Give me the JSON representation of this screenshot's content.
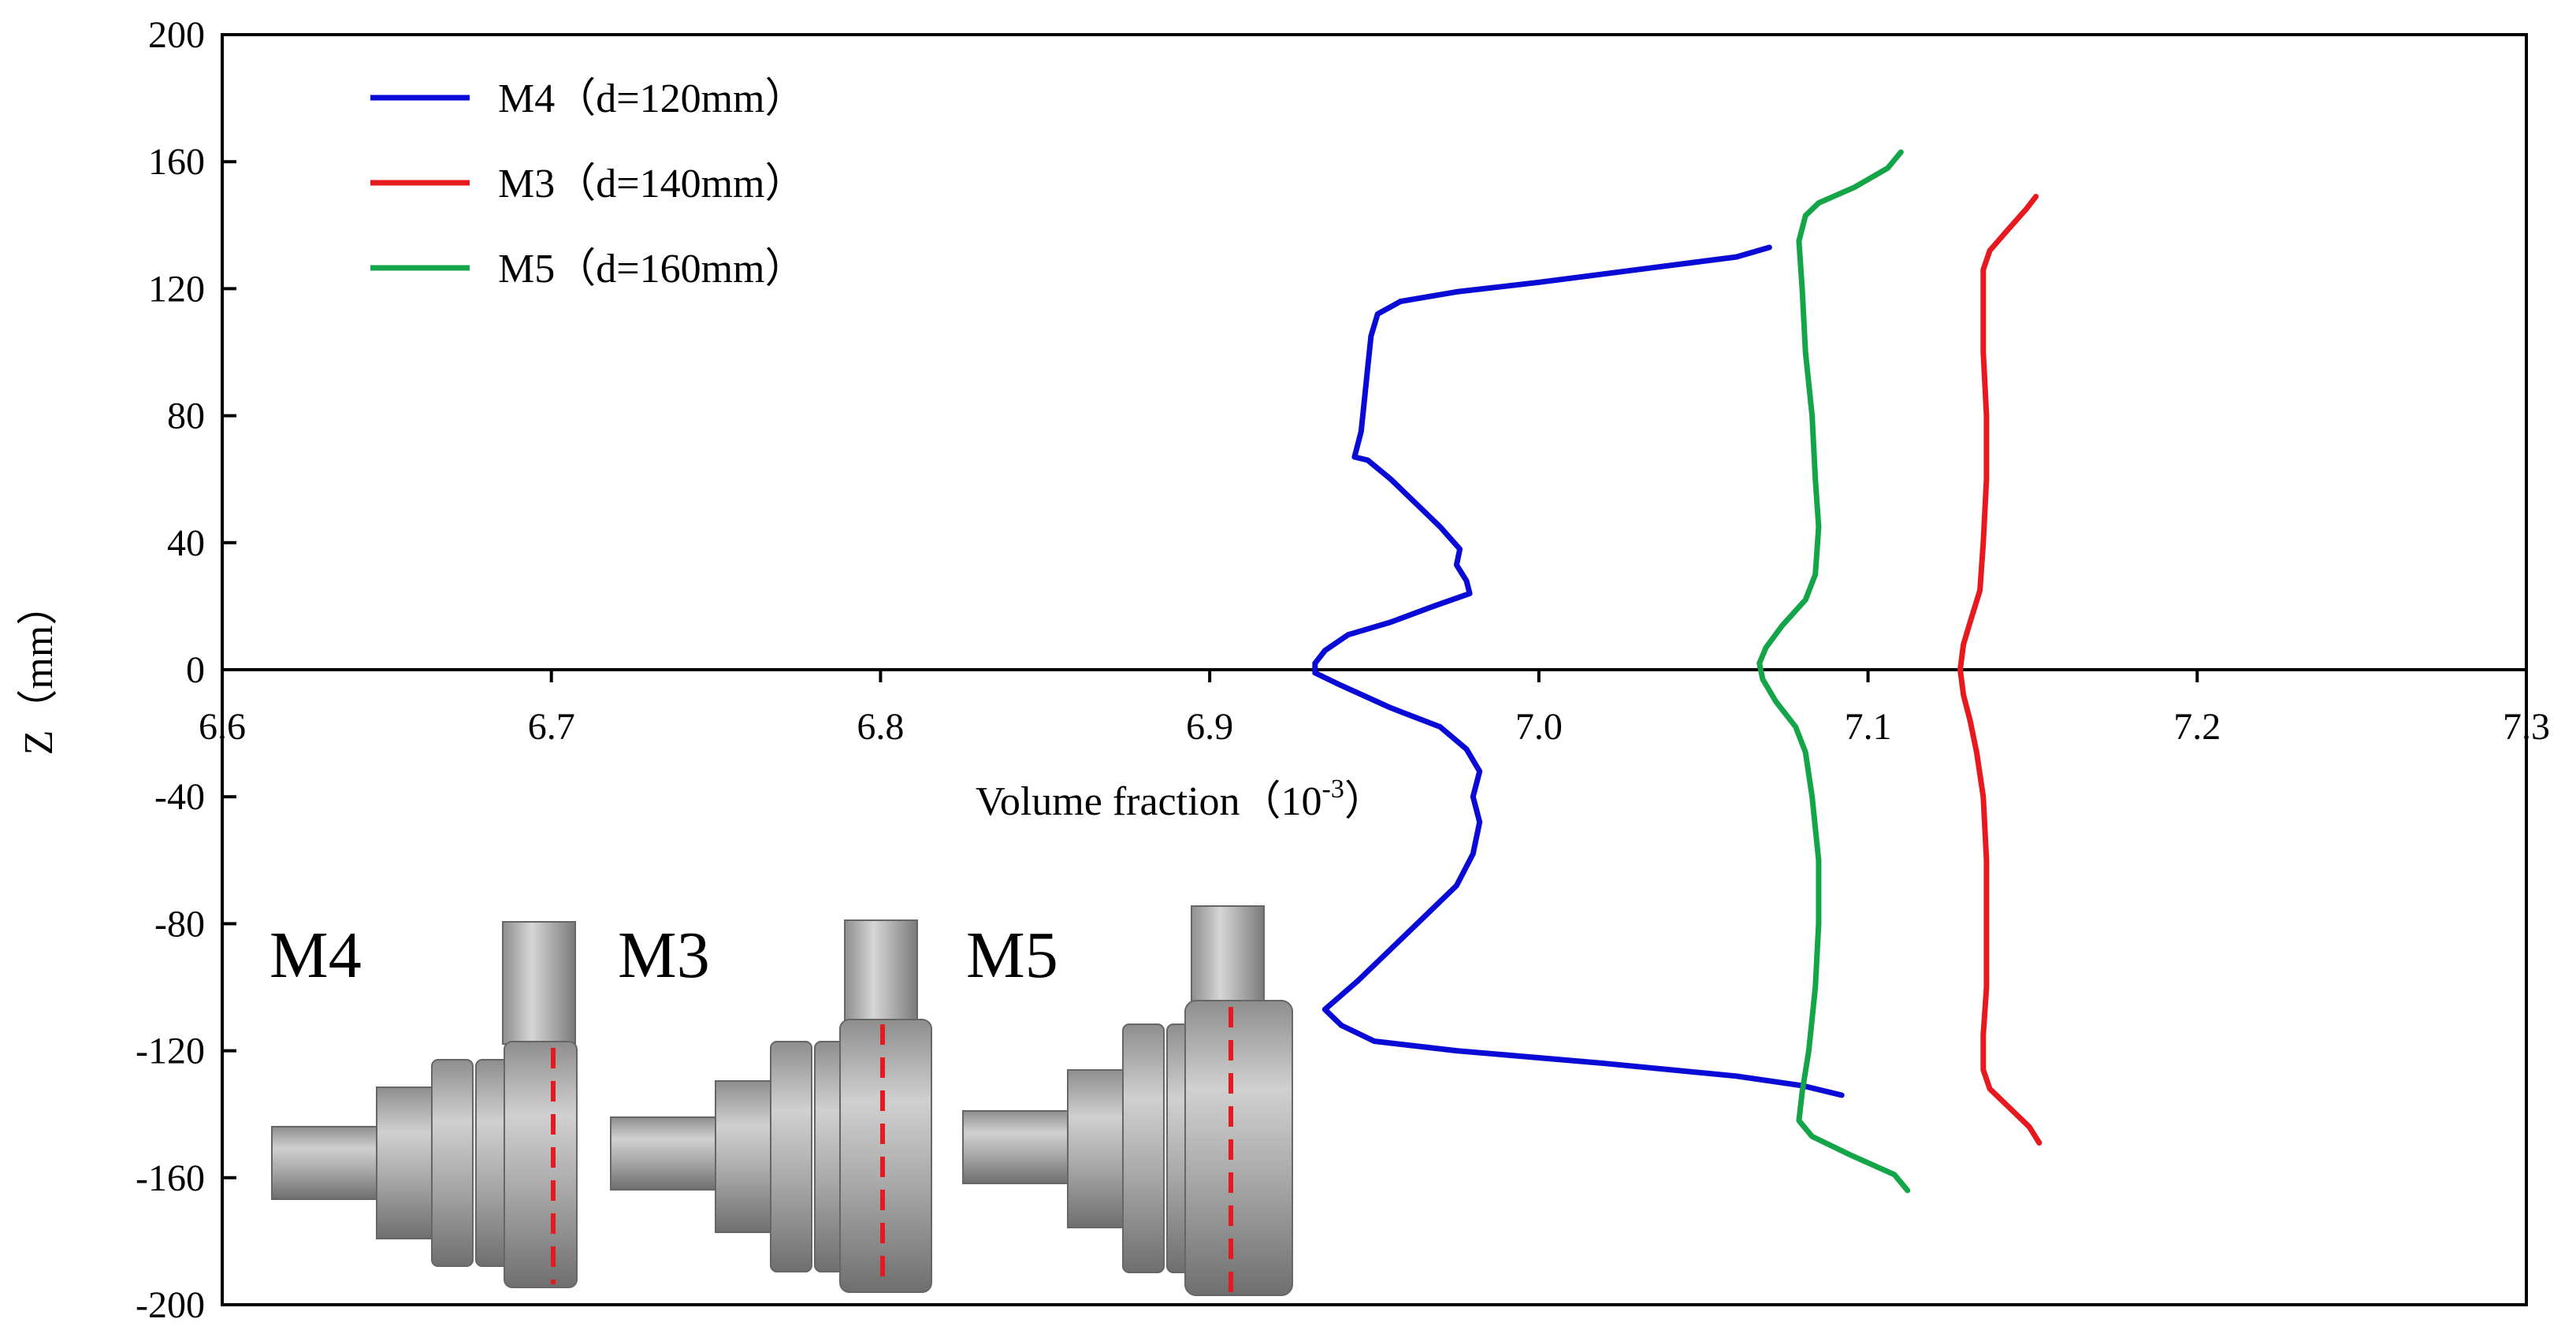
{
  "chart_data": {
    "type": "line",
    "xlabel": "Volume fraction（10",
    "xlabel_sup": "-3",
    "xlabel_end": "）",
    "ylabel": "Z（mm）",
    "xlim": [
      6.6,
      7.3
    ],
    "ylim": [
      -200,
      200
    ],
    "x_ticks": [
      "6.6",
      "6.7",
      "6.8",
      "6.9",
      "7.0",
      "7.1",
      "7.2",
      "7.3"
    ],
    "y_ticks": [
      "200",
      "160",
      "120",
      "80",
      "40",
      "0",
      "-40",
      "-80",
      "-120",
      "-160",
      "-200"
    ],
    "grid": false,
    "legend_position": "top-left",
    "series": [
      {
        "name": "M4（d=120mm）",
        "color": "#0a0ad6",
        "points": [
          [
            7.07,
            133
          ],
          [
            7.06,
            130
          ],
          [
            7.03,
            126
          ],
          [
            7.0,
            122
          ],
          [
            6.975,
            119
          ],
          [
            6.958,
            116
          ],
          [
            6.951,
            112
          ],
          [
            6.949,
            105
          ],
          [
            6.948,
            95
          ],
          [
            6.947,
            85
          ],
          [
            6.946,
            75
          ],
          [
            6.944,
            67
          ],
          [
            6.948,
            66
          ],
          [
            6.955,
            60
          ],
          [
            6.963,
            52
          ],
          [
            6.97,
            45
          ],
          [
            6.976,
            38
          ],
          [
            6.975,
            33
          ],
          [
            6.978,
            28
          ],
          [
            6.979,
            24
          ],
          [
            6.968,
            20
          ],
          [
            6.955,
            15
          ],
          [
            6.942,
            11
          ],
          [
            6.935,
            6
          ],
          [
            6.932,
            2
          ],
          [
            6.932,
            -1
          ],
          [
            6.94,
            -5
          ],
          [
            6.955,
            -12
          ],
          [
            6.97,
            -18
          ],
          [
            6.978,
            -25
          ],
          [
            6.982,
            -32
          ],
          [
            6.98,
            -40
          ],
          [
            6.982,
            -48
          ],
          [
            6.98,
            -58
          ],
          [
            6.975,
            -68
          ],
          [
            6.965,
            -78
          ],
          [
            6.955,
            -88
          ],
          [
            6.945,
            -98
          ],
          [
            6.935,
            -107
          ],
          [
            6.94,
            -112
          ],
          [
            6.95,
            -117
          ],
          [
            6.975,
            -120
          ],
          [
            7.02,
            -124
          ],
          [
            7.06,
            -128
          ],
          [
            7.08,
            -131
          ],
          [
            7.092,
            -134
          ]
        ]
      },
      {
        "name": "M3（d=140mm）",
        "color": "#e8191e",
        "points": [
          [
            7.151,
            149
          ],
          [
            7.148,
            145
          ],
          [
            7.142,
            138
          ],
          [
            7.137,
            132
          ],
          [
            7.135,
            126
          ],
          [
            7.135,
            115
          ],
          [
            7.135,
            100
          ],
          [
            7.136,
            80
          ],
          [
            7.136,
            60
          ],
          [
            7.135,
            40
          ],
          [
            7.134,
            25
          ],
          [
            7.131,
            15
          ],
          [
            7.129,
            8
          ],
          [
            7.128,
            0
          ],
          [
            7.129,
            -8
          ],
          [
            7.131,
            -16
          ],
          [
            7.133,
            -26
          ],
          [
            7.135,
            -40
          ],
          [
            7.136,
            -60
          ],
          [
            7.136,
            -80
          ],
          [
            7.136,
            -100
          ],
          [
            7.135,
            -115
          ],
          [
            7.135,
            -126
          ],
          [
            7.137,
            -132
          ],
          [
            7.143,
            -138
          ],
          [
            7.149,
            -144
          ],
          [
            7.152,
            -149
          ]
        ]
      },
      {
        "name": "M5（d=160mm）",
        "color": "#14a548",
        "points": [
          [
            7.11,
            163
          ],
          [
            7.106,
            158
          ],
          [
            7.096,
            152
          ],
          [
            7.085,
            147
          ],
          [
            7.081,
            143
          ],
          [
            7.079,
            135
          ],
          [
            7.08,
            120
          ],
          [
            7.081,
            100
          ],
          [
            7.083,
            80
          ],
          [
            7.084,
            60
          ],
          [
            7.085,
            45
          ],
          [
            7.084,
            30
          ],
          [
            7.081,
            22
          ],
          [
            7.074,
            14
          ],
          [
            7.069,
            7
          ],
          [
            7.067,
            2
          ],
          [
            7.068,
            -3
          ],
          [
            7.072,
            -10
          ],
          [
            7.078,
            -18
          ],
          [
            7.081,
            -26
          ],
          [
            7.083,
            -40
          ],
          [
            7.085,
            -60
          ],
          [
            7.085,
            -80
          ],
          [
            7.084,
            -100
          ],
          [
            7.082,
            -120
          ],
          [
            7.08,
            -133
          ],
          [
            7.079,
            -142
          ],
          [
            7.083,
            -147
          ],
          [
            7.095,
            -153
          ],
          [
            7.108,
            -159
          ],
          [
            7.112,
            -164
          ]
        ]
      }
    ],
    "annotations": [
      "M4",
      "M3",
      "M5"
    ]
  }
}
